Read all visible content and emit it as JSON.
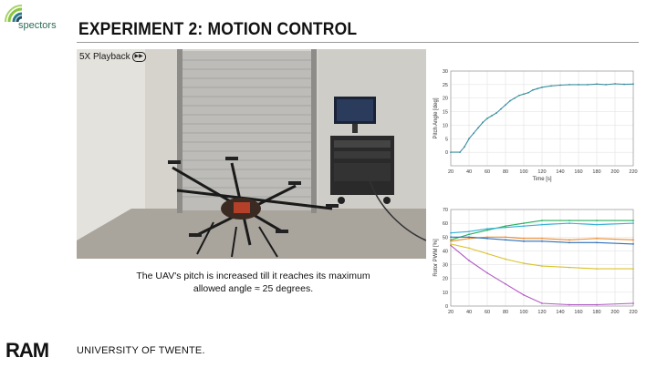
{
  "header": {
    "logo_text": "spectors",
    "title": "EXPERIMENT 2: MOTION CONTROL"
  },
  "video": {
    "overlay_label": "5X Playback",
    "icon": "fast-forward-icon"
  },
  "caption": {
    "line1": "The UAV's pitch is increased till it reaches its maximum",
    "line2": "allowed angle ≈ 25 degrees."
  },
  "footer": {
    "ram_logo": "RAM",
    "university": "UNIVERSITY OF TWENTE."
  },
  "chart_data": [
    {
      "type": "line",
      "ylabel": "Pitch Angle [deg]",
      "xlabel": "Time [s]",
      "xlim": [
        20,
        220
      ],
      "ylim": [
        -5,
        30
      ],
      "xticks": [
        20,
        40,
        60,
        80,
        100,
        120,
        140,
        160,
        180,
        200,
        220
      ],
      "yticks": [
        0,
        5,
        10,
        15,
        20,
        25,
        30
      ],
      "grid": true,
      "series": [
        {
          "x": [
            20,
            30,
            35,
            40,
            45,
            50,
            55,
            60,
            65,
            70,
            75,
            80,
            85,
            90,
            95,
            100,
            105,
            110,
            115,
            120,
            130,
            140,
            150,
            160,
            170,
            180,
            190,
            200,
            210,
            220
          ],
          "values": [
            0,
            0,
            2,
            5,
            7,
            9,
            11,
            12.5,
            13.5,
            14.5,
            16,
            17.5,
            19,
            20,
            21,
            21.5,
            22,
            23,
            23.5,
            24,
            24.5,
            24.8,
            25,
            25,
            25,
            25.2,
            25,
            25.3,
            25.1,
            25.2
          ]
        }
      ]
    },
    {
      "type": "line",
      "ylabel": "Rotor PWM [%]",
      "xlabel": "",
      "xlim": [
        20,
        220
      ],
      "ylim": [
        0,
        70
      ],
      "xticks": [
        20,
        40,
        60,
        80,
        100,
        120,
        140,
        160,
        180,
        200,
        220
      ],
      "yticks": [
        0,
        10,
        20,
        30,
        40,
        50,
        60,
        70
      ],
      "grid": true,
      "series": [
        {
          "color": "#27b05a",
          "x": [
            20,
            40,
            60,
            80,
            100,
            120,
            150,
            180,
            220
          ],
          "values": [
            48,
            52,
            55,
            58,
            60,
            62,
            62,
            62,
            62
          ]
        },
        {
          "color": "#35b0d8",
          "x": [
            20,
            40,
            60,
            80,
            100,
            120,
            150,
            180,
            220
          ],
          "values": [
            53,
            54,
            56,
            57,
            58,
            59,
            60,
            59,
            60
          ]
        },
        {
          "color": "#ec8a2a",
          "x": [
            20,
            40,
            60,
            80,
            100,
            120,
            150,
            180,
            220
          ],
          "values": [
            47,
            49,
            50,
            50,
            49,
            49,
            48,
            49,
            48
          ]
        },
        {
          "color": "#2f6fb8",
          "x": [
            20,
            40,
            60,
            80,
            100,
            120,
            150,
            180,
            220
          ],
          "values": [
            50,
            50,
            49,
            48,
            47,
            47,
            46,
            46,
            45
          ]
        },
        {
          "color": "#d9c22a",
          "x": [
            20,
            40,
            60,
            80,
            100,
            120,
            150,
            180,
            220
          ],
          "values": [
            45,
            42,
            38,
            34,
            31,
            29,
            28,
            27,
            27
          ]
        },
        {
          "color": "#b25ac4",
          "x": [
            20,
            40,
            60,
            80,
            100,
            120,
            150,
            180,
            220
          ],
          "values": [
            44,
            33,
            24,
            16,
            8,
            2,
            1,
            1,
            2
          ]
        }
      ]
    }
  ]
}
